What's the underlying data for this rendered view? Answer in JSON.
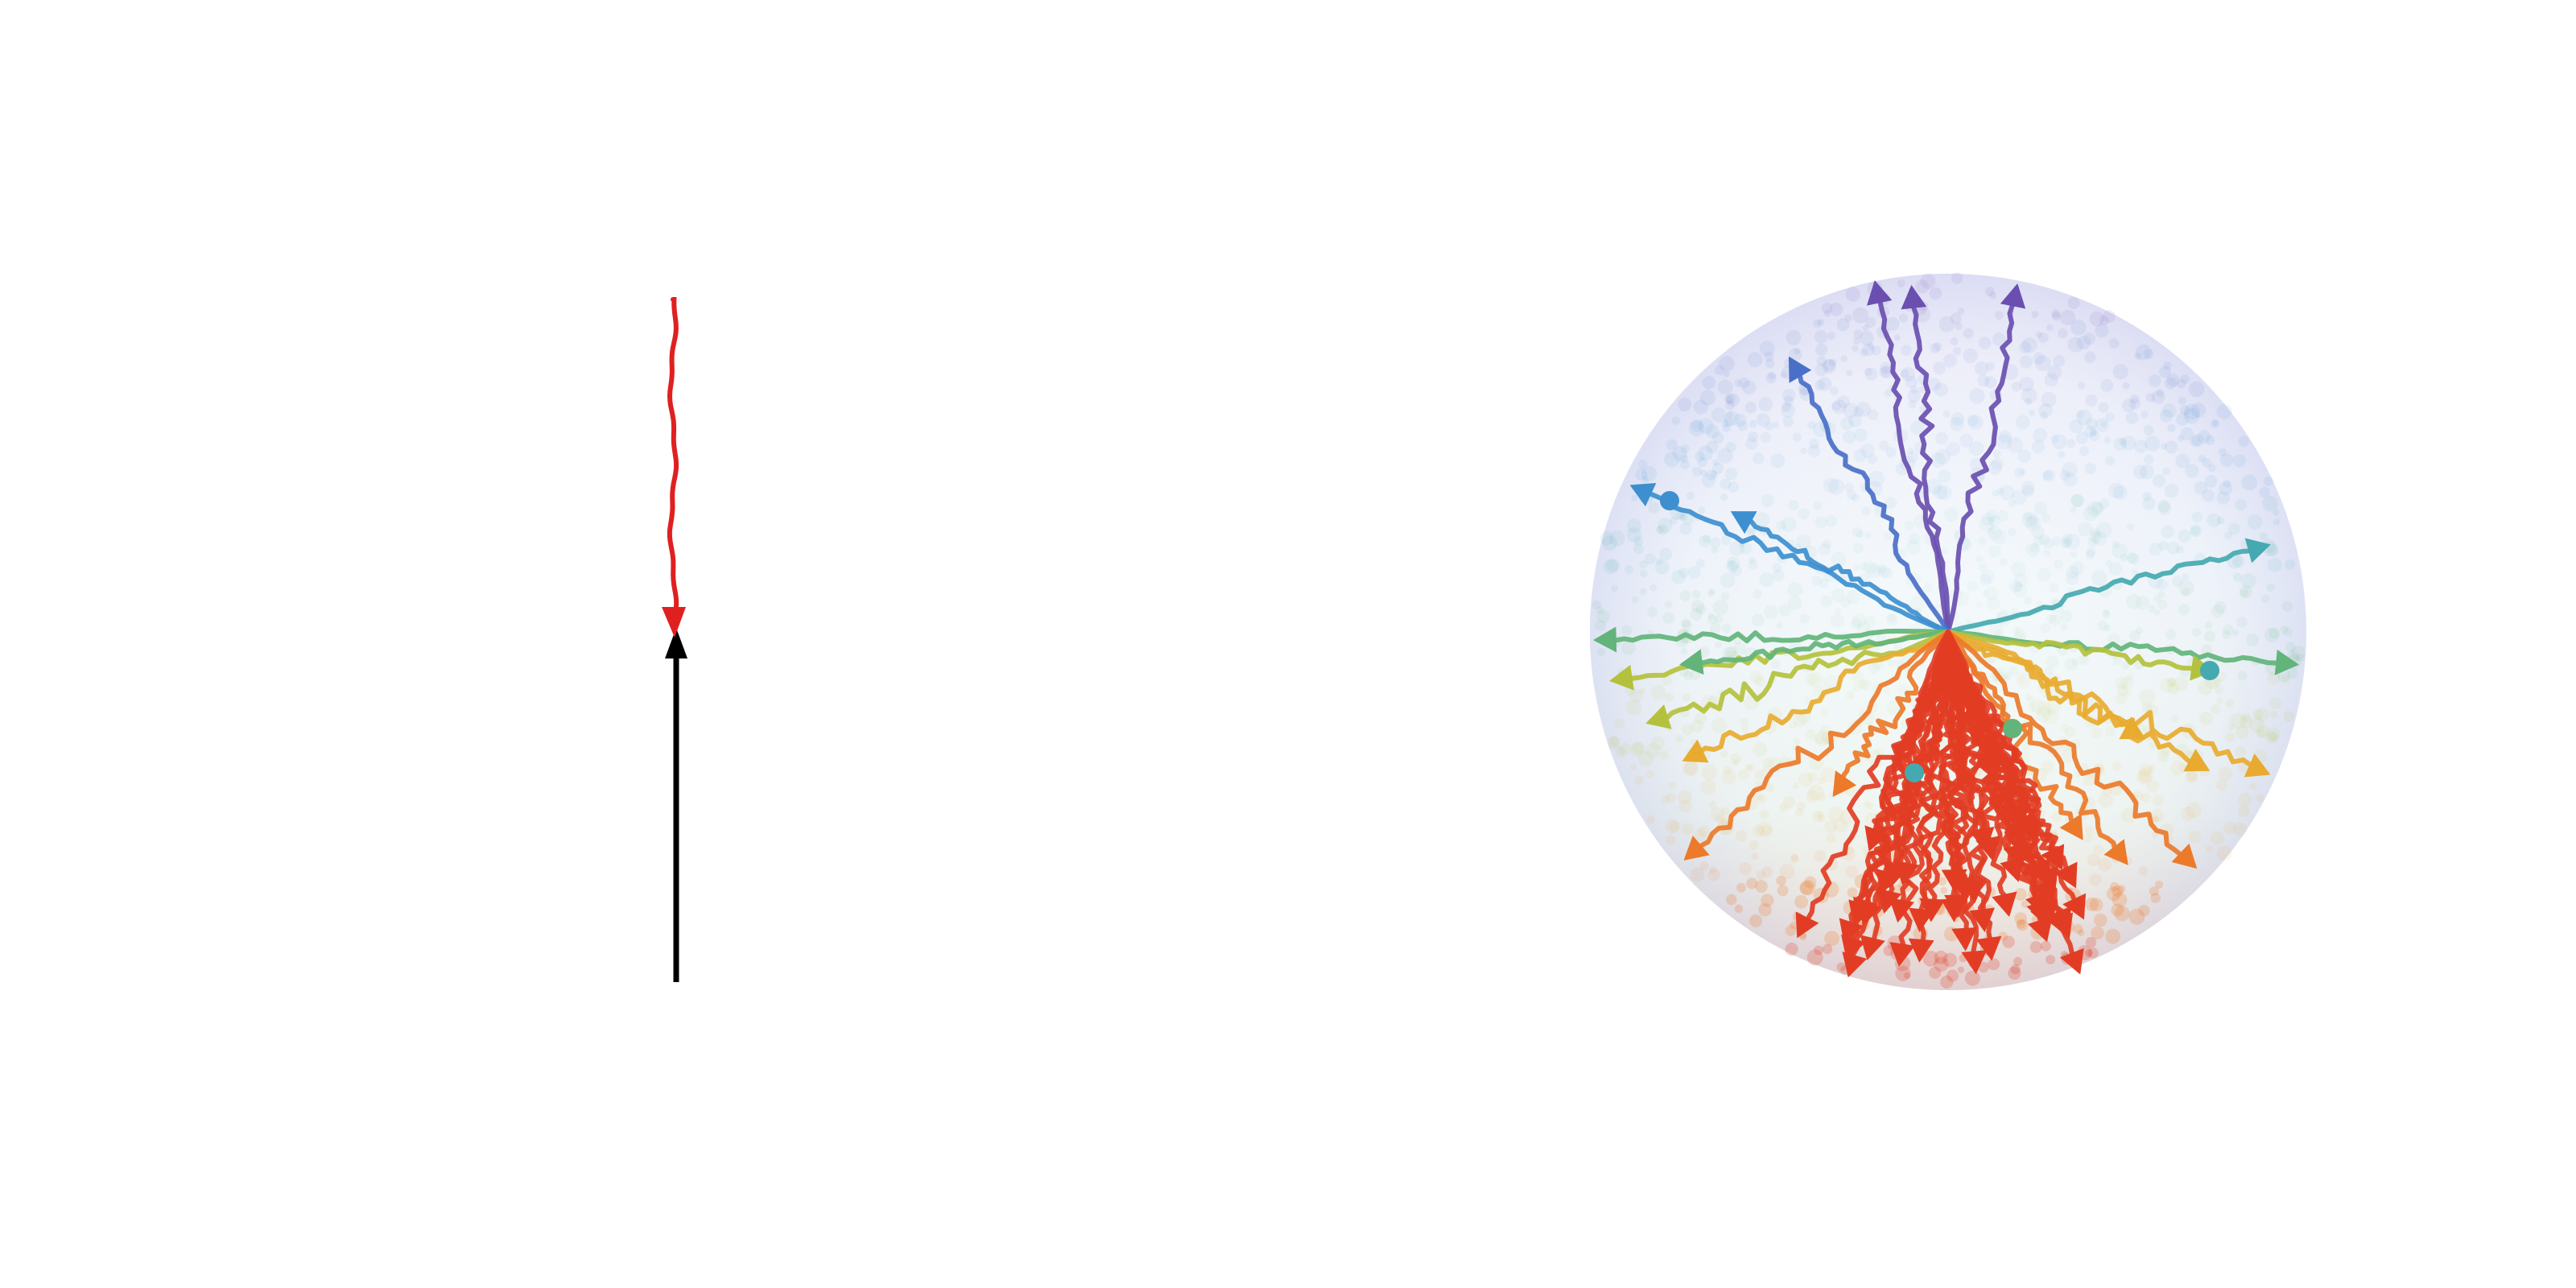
{
  "colors": {
    "background": "#ffffff",
    "incident": "#000000",
    "straight_trajectory": "#e02020",
    "spectrum": [
      "#6a4fb0",
      "#4a6fc8",
      "#3d8fcf",
      "#44a9b0",
      "#62b47a",
      "#b4c13c",
      "#e8ab30",
      "#ec7a2a",
      "#e23d24"
    ]
  },
  "panels": [
    {
      "id": "single-trajectory",
      "description_id": "incident-arrow-then-straight-red-path",
      "incident_arrow": true,
      "path_count": 1
    },
    {
      "id": "scattering-sphere",
      "description_id": "random-walk-paths-from-center-colored-by-direction",
      "path_count": 46,
      "forward_fraction": 0.52
    }
  ]
}
